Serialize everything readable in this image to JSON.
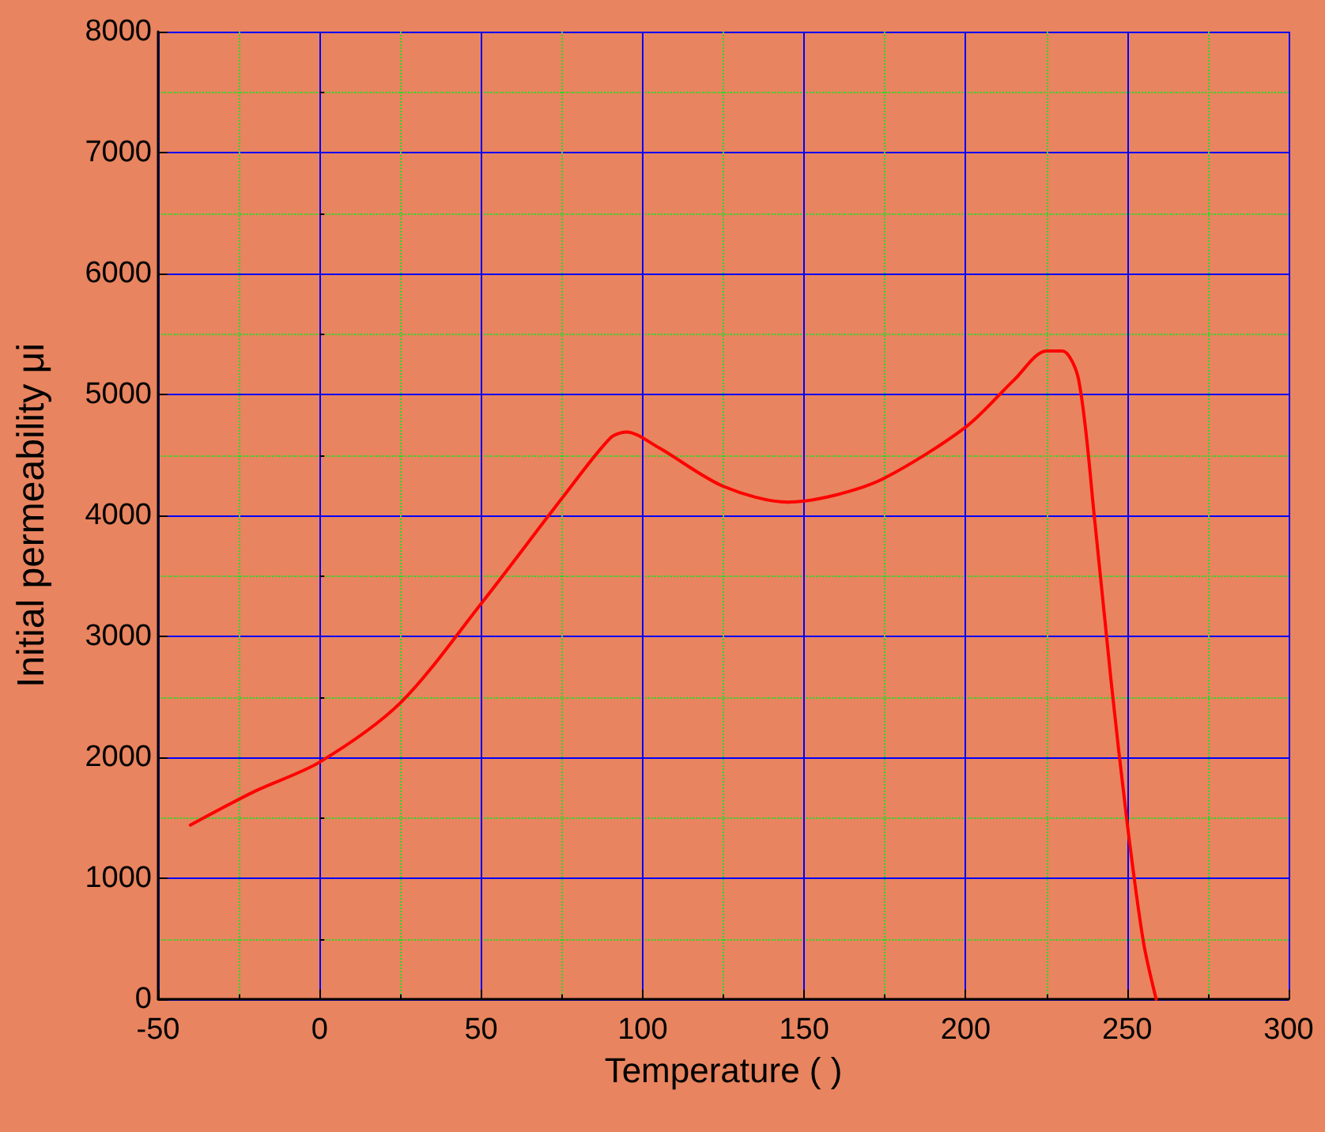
{
  "chart_data": {
    "type": "line",
    "xlabel": "Temperature ( )",
    "ylabel": "Initial permeability μi",
    "x": [
      -40,
      -20,
      0,
      25,
      50,
      75,
      90,
      95,
      105,
      125,
      145,
      160,
      175,
      200,
      215,
      225,
      230,
      235,
      240,
      245,
      250,
      255,
      259
    ],
    "series": [
      {
        "color": "#ff0000",
        "values": [
          1440,
          1720,
          1960,
          2450,
          3270,
          4140,
          4640,
          4690,
          4560,
          4240,
          4110,
          4170,
          4310,
          4730,
          5120,
          5360,
          5360,
          5120,
          3950,
          2640,
          1460,
          480,
          0
        ]
      }
    ],
    "xlim": [
      -50,
      300
    ],
    "xticks": [
      -50,
      {
        "value": -25,
        "label": null
      },
      0,
      {
        "value": 25,
        "label": null
      },
      50,
      {
        "value": 75,
        "label": null
      },
      100,
      {
        "value": 125,
        "label": null
      },
      150,
      {
        "value": 175,
        "label": null
      },
      200,
      {
        "value": 225,
        "label": null
      },
      250,
      {
        "value": 275,
        "label": null
      },
      300
    ],
    "ylim": [
      0,
      8000
    ],
    "yticks": [
      0,
      {
        "value": 500,
        "label": null
      },
      1000,
      {
        "value": 1500,
        "label": null
      },
      2000,
      {
        "value": 2500,
        "label": null
      },
      3000,
      {
        "value": 3500,
        "label": null
      },
      4000,
      {
        "value": 4500,
        "label": null
      },
      5000,
      {
        "value": 5500,
        "label": null
      },
      6000,
      {
        "value": 6500,
        "label": null
      },
      7000,
      {
        "value": 7500,
        "label": null
      },
      8000
    ],
    "grid": true,
    "marker": "none",
    "line_style": "solid"
  }
}
